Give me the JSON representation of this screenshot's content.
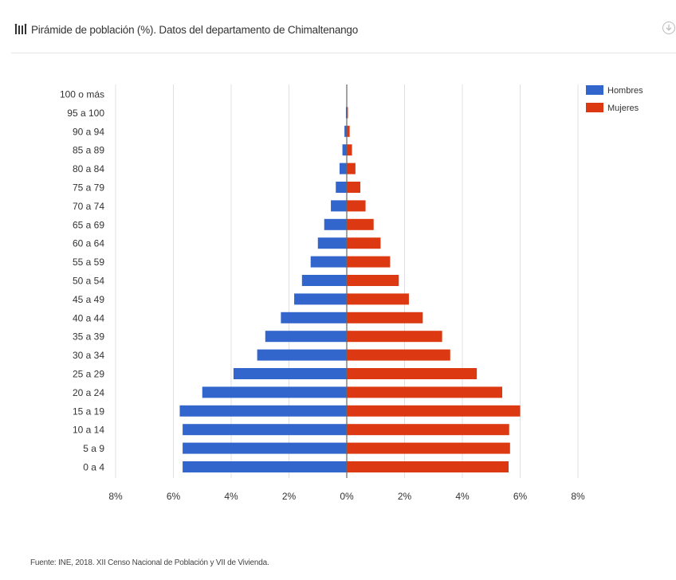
{
  "header": {
    "title": "Pirámide de población (%). Datos del departamento de Chimaltenango",
    "icon": "population-pyramid-icon",
    "download_icon": "download-icon"
  },
  "source": "Fuente: INE, 2018. XII Censo Nacional de Población y VII de Vivienda.",
  "colors": {
    "men": "#3366cc",
    "women": "#dc3912",
    "grid": "#e0e0e0",
    "axis": "#666666"
  },
  "chart_data": {
    "type": "bar",
    "orientation": "horizontal",
    "title": "Pirámide de población (%). Datos del departamento de Chimaltenango",
    "categories": [
      "100 o más",
      "95 a 100",
      "90 a 94",
      "85 a 89",
      "80 a 84",
      "75 a 79",
      "70 a 74",
      "65 a 69",
      "60 a 64",
      "55 a 59",
      "50 a 54",
      "45 a 49",
      "40 a 44",
      "35 a 39",
      "30 a 34",
      "25 a 29",
      "20 a 24",
      "15 a 19",
      "10 a 14",
      "5 a 9",
      "0 a 4"
    ],
    "series": [
      {
        "name": "Hombres",
        "color": "#3366cc",
        "values": [
          0.01,
          0.03,
          0.08,
          0.15,
          0.25,
          0.38,
          0.55,
          0.78,
          1.0,
          1.25,
          1.55,
          1.82,
          2.28,
          2.82,
          3.1,
          3.92,
          5.0,
          5.78,
          5.68,
          5.68,
          5.68
        ]
      },
      {
        "name": "Mujeres",
        "color": "#dc3912",
        "values": [
          0.01,
          0.04,
          0.1,
          0.18,
          0.3,
          0.47,
          0.65,
          0.93,
          1.17,
          1.5,
          1.8,
          2.15,
          2.63,
          3.3,
          3.58,
          4.5,
          5.38,
          6.0,
          5.62,
          5.65,
          5.6
        ]
      }
    ],
    "xlim": [
      -8,
      8
    ],
    "xticks": [
      -8,
      -6,
      -4,
      -2,
      0,
      2,
      4,
      6,
      8
    ],
    "xtick_labels": [
      "8%",
      "6%",
      "4%",
      "2%",
      "0%",
      "2%",
      "4%",
      "6%",
      "8%"
    ],
    "grid": true,
    "legend_position": "top-right"
  }
}
